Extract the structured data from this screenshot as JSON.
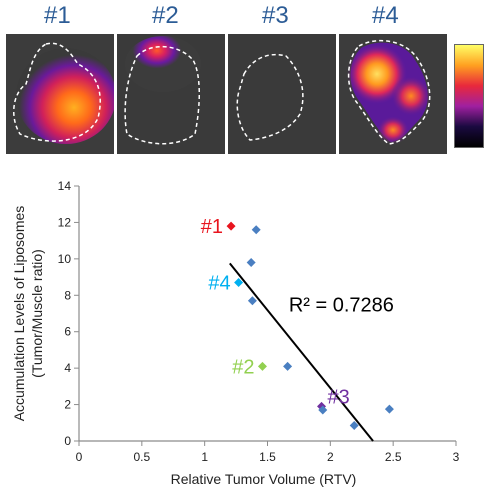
{
  "panels": [
    {
      "label": "#1"
    },
    {
      "label": "#2"
    },
    {
      "label": "#3"
    },
    {
      "label": "#4"
    }
  ],
  "colorbar": {
    "gradient": [
      "#ffff66",
      "#ffa020",
      "#e8283c",
      "#a020a0",
      "#1a0a40",
      "#000000"
    ]
  },
  "chart_data": {
    "type": "scatter",
    "title": "",
    "xlabel": "Relative Tumor Volume (RTV)",
    "ylabel_line1": "Accumulation Levels of Liposomes",
    "ylabel_line2": "(Tumor/Muscle ratio)",
    "xlim": [
      0,
      3
    ],
    "ylim": [
      0,
      14
    ],
    "xticks": [
      0,
      0.5,
      1,
      1.5,
      2,
      2.5,
      3
    ],
    "xtick_labels": [
      "0",
      "0.5",
      "1",
      "1.5",
      "2",
      "2.5",
      "3"
    ],
    "yticks": [
      0,
      2,
      4,
      6,
      8,
      10,
      12,
      14
    ],
    "ytick_labels": [
      "0",
      "2",
      "4",
      "6",
      "8",
      "10",
      "12",
      "14"
    ],
    "grid": false,
    "points": [
      {
        "x": 1.21,
        "y": 11.8,
        "color": "#e8141e",
        "label": "#1"
      },
      {
        "x": 1.41,
        "y": 11.6,
        "color": "#4a7fc1"
      },
      {
        "x": 1.37,
        "y": 9.8,
        "color": "#4a7fc1"
      },
      {
        "x": 1.27,
        "y": 8.7,
        "color": "#00b0f0",
        "label": "#4"
      },
      {
        "x": 1.38,
        "y": 7.7,
        "color": "#4a7fc1"
      },
      {
        "x": 1.46,
        "y": 4.1,
        "color": "#92d050",
        "label": "#2"
      },
      {
        "x": 1.66,
        "y": 4.1,
        "color": "#4a7fc1"
      },
      {
        "x": 1.93,
        "y": 1.9,
        "color": "#7030a0",
        "label": "#3"
      },
      {
        "x": 1.94,
        "y": 1.7,
        "color": "#4a7fc1"
      },
      {
        "x": 2.19,
        "y": 0.85,
        "color": "#4a7fc1"
      },
      {
        "x": 2.47,
        "y": 1.75,
        "color": "#4a7fc1"
      }
    ],
    "trendline": {
      "x": [
        1.2,
        2.34
      ],
      "y": [
        9.75,
        0
      ]
    },
    "annotation": "R² = 0.7286"
  }
}
